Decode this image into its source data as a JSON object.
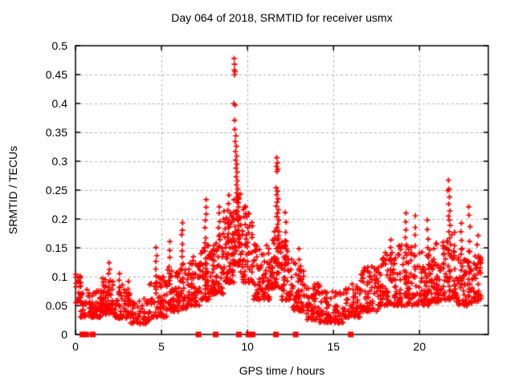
{
  "figure": {
    "title": "Day 064 of 2018, SRMTID for receiver usmx",
    "xlabel": "GPS time / hours",
    "ylabel": "SRMTID / TECUs"
  },
  "colors": {
    "marker": "#ff0000",
    "zero_marker": "#ff0000",
    "grid": "#b0b0b0",
    "axis": "#000000",
    "text": "#000000",
    "background": "#ffffff"
  },
  "chart_data": {
    "type": "scatter",
    "title": "Day 064 of 2018, SRMTID for receiver usmx",
    "xlabel": "GPS time / hours",
    "ylabel": "SRMTID / TECUs",
    "xlim": [
      0,
      24
    ],
    "ylim": [
      0,
      0.5
    ],
    "xticks": [
      {
        "value": 0,
        "label": "0"
      },
      {
        "value": 5,
        "label": "5"
      },
      {
        "value": 10,
        "label": "10"
      },
      {
        "value": 15,
        "label": "15"
      },
      {
        "value": 20,
        "label": "20"
      }
    ],
    "yticks": [
      {
        "value": 0,
        "label": "0"
      },
      {
        "value": 0.05,
        "label": "0.05"
      },
      {
        "value": 0.1,
        "label": "0.1"
      },
      {
        "value": 0.15,
        "label": "0.15"
      },
      {
        "value": 0.2,
        "label": "0.2"
      },
      {
        "value": 0.25,
        "label": "0.25"
      },
      {
        "value": 0.3,
        "label": "0.3"
      },
      {
        "value": 0.35,
        "label": "0.35"
      },
      {
        "value": 0.4,
        "label": "0.4"
      },
      {
        "value": 0.45,
        "label": "0.45"
      },
      {
        "value": 0.5,
        "label": "0.5"
      }
    ],
    "grid": {
      "show": true,
      "style": "dashed",
      "both_axes": true
    },
    "marker": "plus",
    "marker_color": "#ff0000",
    "seed": 20180064,
    "peak_points": [
      [
        9.22,
        0.478
      ],
      [
        9.25,
        0.468
      ],
      [
        9.23,
        0.458
      ],
      [
        9.27,
        0.455
      ],
      [
        9.25,
        0.45
      ],
      [
        9.2,
        0.4
      ],
      [
        9.28,
        0.397
      ],
      [
        9.24,
        0.371
      ],
      [
        9.26,
        0.355
      ],
      [
        9.32,
        0.344
      ],
      [
        9.28,
        0.334
      ],
      [
        9.35,
        0.326
      ],
      [
        9.3,
        0.317
      ],
      [
        9.37,
        0.309
      ],
      [
        9.31,
        0.302
      ],
      [
        9.38,
        0.295
      ],
      [
        9.33,
        0.288
      ],
      [
        9.4,
        0.281
      ],
      [
        9.34,
        0.273
      ],
      [
        9.41,
        0.266
      ],
      [
        9.36,
        0.259
      ],
      [
        9.43,
        0.252
      ],
      [
        9.38,
        0.245
      ],
      [
        9.45,
        0.237
      ],
      [
        9.4,
        0.229
      ],
      [
        9.47,
        0.221
      ],
      [
        9.42,
        0.213
      ],
      [
        9.49,
        0.205
      ],
      [
        9.44,
        0.197
      ],
      [
        9.51,
        0.189
      ],
      [
        9.46,
        0.181
      ],
      [
        9.53,
        0.173
      ],
      [
        9.48,
        0.165
      ],
      [
        9.55,
        0.157
      ],
      [
        11.7,
        0.306
      ],
      [
        11.74,
        0.297
      ],
      [
        11.68,
        0.291
      ],
      [
        11.76,
        0.286
      ],
      [
        11.71,
        0.282
      ],
      [
        11.66,
        0.254
      ],
      [
        11.75,
        0.248
      ],
      [
        11.69,
        0.242
      ],
      [
        11.78,
        0.235
      ],
      [
        11.72,
        0.229
      ],
      [
        11.67,
        0.222
      ],
      [
        11.8,
        0.216
      ],
      [
        11.74,
        0.21
      ],
      [
        11.7,
        0.204
      ],
      [
        11.82,
        0.198
      ],
      [
        11.76,
        0.191
      ],
      [
        11.71,
        0.185
      ],
      [
        11.84,
        0.178
      ],
      [
        11.78,
        0.171
      ],
      [
        11.73,
        0.164
      ],
      [
        11.85,
        0.157
      ],
      [
        11.79,
        0.151
      ],
      [
        21.68,
        0.267
      ],
      [
        21.72,
        0.252
      ],
      [
        21.65,
        0.249
      ],
      [
        21.74,
        0.238
      ],
      [
        21.7,
        0.226
      ],
      [
        21.76,
        0.214
      ],
      [
        21.69,
        0.205
      ],
      [
        21.73,
        0.198
      ],
      [
        21.78,
        0.189
      ],
      [
        21.71,
        0.178
      ],
      [
        21.75,
        0.167
      ],
      [
        21.8,
        0.156
      ],
      [
        21.72,
        0.146
      ],
      [
        22.86,
        0.221
      ]
    ],
    "column_features": [
      [
        1.95,
        0.125,
        0.08,
        5
      ],
      [
        2.55,
        0.105,
        0.07,
        4
      ],
      [
        4.7,
        0.15,
        0.08,
        7
      ],
      [
        5.45,
        0.158,
        0.09,
        6
      ],
      [
        6.2,
        0.196,
        0.12,
        7
      ],
      [
        7.55,
        0.235,
        0.13,
        9
      ],
      [
        8.35,
        0.222,
        0.15,
        7
      ],
      [
        8.9,
        0.242,
        0.16,
        7
      ],
      [
        12.2,
        0.21,
        0.12,
        7
      ],
      [
        13.0,
        0.147,
        0.1,
        4
      ],
      [
        18.3,
        0.165,
        0.1,
        6
      ],
      [
        19.2,
        0.212,
        0.11,
        8
      ],
      [
        19.75,
        0.205,
        0.12,
        6
      ],
      [
        20.5,
        0.2,
        0.12,
        6
      ],
      [
        22.4,
        0.19,
        0.11,
        7
      ],
      [
        22.9,
        0.205,
        0.12,
        5
      ],
      [
        23.4,
        0.17,
        0.12,
        4
      ]
    ],
    "cloud_segments": [
      [
        0.02,
        0.3,
        22,
        0.055,
        0.105
      ],
      [
        0.3,
        1.5,
        85,
        0.03,
        0.078
      ],
      [
        1.5,
        2.3,
        65,
        0.035,
        0.098
      ],
      [
        2.3,
        3.2,
        60,
        0.028,
        0.092
      ],
      [
        3.2,
        4.3,
        52,
        0.018,
        0.068
      ],
      [
        4.3,
        5.3,
        58,
        0.03,
        0.105
      ],
      [
        5.3,
        6.0,
        52,
        0.04,
        0.115
      ],
      [
        6.0,
        6.6,
        45,
        0.045,
        0.125
      ],
      [
        6.6,
        7.3,
        55,
        0.05,
        0.135
      ],
      [
        7.3,
        7.8,
        45,
        0.06,
        0.155
      ],
      [
        7.8,
        8.6,
        68,
        0.07,
        0.175
      ],
      [
        8.6,
        9.2,
        68,
        0.09,
        0.215
      ],
      [
        9.2,
        9.6,
        48,
        0.12,
        0.25
      ],
      [
        9.6,
        10.3,
        58,
        0.09,
        0.225
      ],
      [
        10.3,
        11.3,
        78,
        0.06,
        0.158
      ],
      [
        11.3,
        12.0,
        58,
        0.08,
        0.185
      ],
      [
        12.0,
        12.6,
        48,
        0.06,
        0.165
      ],
      [
        12.6,
        13.3,
        52,
        0.04,
        0.135
      ],
      [
        13.3,
        14.2,
        58,
        0.025,
        0.09
      ],
      [
        14.2,
        15.6,
        78,
        0.02,
        0.075
      ],
      [
        15.6,
        16.6,
        62,
        0.03,
        0.088
      ],
      [
        16.6,
        17.6,
        68,
        0.04,
        0.118
      ],
      [
        17.6,
        18.6,
        72,
        0.05,
        0.142
      ],
      [
        18.6,
        19.6,
        72,
        0.05,
        0.162
      ],
      [
        19.6,
        20.6,
        72,
        0.05,
        0.152
      ],
      [
        20.6,
        21.5,
        68,
        0.055,
        0.162
      ],
      [
        21.5,
        22.1,
        52,
        0.06,
        0.182
      ],
      [
        22.1,
        22.9,
        58,
        0.05,
        0.152
      ],
      [
        22.9,
        23.65,
        48,
        0.055,
        0.138
      ]
    ],
    "zero_marker_times": [
      0.4,
      0.62,
      1.0,
      7.15,
      8.15,
      9.5,
      10.05,
      10.3,
      11.65,
      12.8,
      16.0
    ]
  }
}
